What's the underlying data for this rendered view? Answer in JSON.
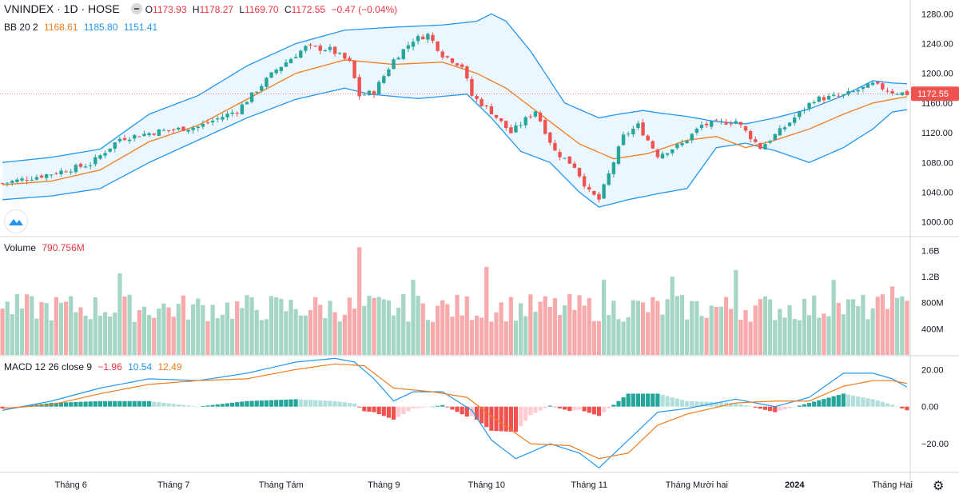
{
  "header": {
    "symbol": "VNINDEX · 1D · HOSE",
    "open_label": "O",
    "open": "1173.93",
    "high_label": "H",
    "high": "1178.27",
    "low_label": "L",
    "low": "1169.70",
    "close_label": "C",
    "close": "1172.55",
    "change": "−0.47 (−0.04%)"
  },
  "bb_legend": {
    "name": "BB 20 2",
    "basis": "1168.61",
    "upper": "1185.80",
    "lower": "1151.41"
  },
  "volume_legend": {
    "name": "Volume",
    "value": "790.756M"
  },
  "macd_legend": {
    "name": "MACD 12 26 close 9",
    "hist": "−1.96",
    "macd": "10.54",
    "signal": "12.49"
  },
  "price_badge": "1172.55",
  "colors": {
    "up": "#26a69a",
    "down": "#ef5350",
    "bb_upper": "#2196f3",
    "bb_lower": "#2196f3",
    "bb_basis": "#f07c1d",
    "bb_fill": "#e3f2fd",
    "macd_line": "#2196f3",
    "signal_line": "#f07c1d"
  },
  "icons": {
    "settings": "gear-icon",
    "logo": "tradingview-logo-icon",
    "collapse": "minus-icon"
  },
  "chart_data": [
    {
      "type": "candlestick",
      "title": "VNINDEX · 1D · HOSE",
      "ylim": [
        990,
        1290
      ],
      "y_ticks": [
        "1280.00",
        "1240.00",
        "1200.00",
        "1160.00",
        "1120.00",
        "1080.00",
        "1040.00",
        "1000.00"
      ],
      "x_ticks": [
        "Tháng 6",
        "Tháng 7",
        "Tháng Tám",
        "Tháng 9",
        "Tháng 10",
        "Tháng 11",
        "Tháng Mười hai",
        "2024",
        "Tháng Hai"
      ],
      "x_tick_index": [
        14,
        35,
        57,
        78,
        99,
        120,
        142,
        162,
        182
      ],
      "num_bars": 186,
      "close_anchors": [
        [
          0,
          1052
        ],
        [
          10,
          1065
        ],
        [
          18,
          1078
        ],
        [
          24,
          1112
        ],
        [
          32,
          1122
        ],
        [
          40,
          1128
        ],
        [
          48,
          1150
        ],
        [
          56,
          1205
        ],
        [
          62,
          1235
        ],
        [
          67,
          1232
        ],
        [
          71,
          1215
        ],
        [
          73,
          1170
        ],
        [
          76,
          1175
        ],
        [
          80,
          1218
        ],
        [
          84,
          1245
        ],
        [
          87,
          1252
        ],
        [
          90,
          1225
        ],
        [
          94,
          1210
        ],
        [
          96,
          1170
        ],
        [
          100,
          1148
        ],
        [
          104,
          1120
        ],
        [
          109,
          1150
        ],
        [
          113,
          1095
        ],
        [
          117,
          1075
        ],
        [
          120,
          1040
        ],
        [
          122,
          1030
        ],
        [
          127,
          1115
        ],
        [
          130,
          1130
        ],
        [
          134,
          1090
        ],
        [
          139,
          1105
        ],
        [
          143,
          1130
        ],
        [
          150,
          1136
        ],
        [
          155,
          1100
        ],
        [
          160,
          1128
        ],
        [
          166,
          1165
        ],
        [
          172,
          1170
        ],
        [
          178,
          1185
        ],
        [
          182,
          1175
        ],
        [
          185,
          1172.55
        ]
      ],
      "bb_upper_anchors": [
        [
          0,
          1080
        ],
        [
          10,
          1087
        ],
        [
          20,
          1098
        ],
        [
          30,
          1145
        ],
        [
          40,
          1170
        ],
        [
          50,
          1210
        ],
        [
          60,
          1240
        ],
        [
          70,
          1258
        ],
        [
          80,
          1262
        ],
        [
          90,
          1265
        ],
        [
          97,
          1270
        ],
        [
          100,
          1280
        ],
        [
          103,
          1270
        ],
        [
          108,
          1230
        ],
        [
          115,
          1160
        ],
        [
          122,
          1140
        ],
        [
          126,
          1145
        ],
        [
          131,
          1150
        ],
        [
          135,
          1146
        ],
        [
          140,
          1142
        ],
        [
          146,
          1135
        ],
        [
          152,
          1132
        ],
        [
          158,
          1140
        ],
        [
          165,
          1152
        ],
        [
          172,
          1170
        ],
        [
          178,
          1190
        ],
        [
          182,
          1187
        ],
        [
          185,
          1186
        ]
      ],
      "bb_lower_anchors": [
        [
          0,
          1030
        ],
        [
          10,
          1035
        ],
        [
          20,
          1045
        ],
        [
          30,
          1080
        ],
        [
          40,
          1110
        ],
        [
          50,
          1140
        ],
        [
          60,
          1165
        ],
        [
          70,
          1180
        ],
        [
          75,
          1172
        ],
        [
          85,
          1166
        ],
        [
          95,
          1172
        ],
        [
          100,
          1140
        ],
        [
          106,
          1095
        ],
        [
          112,
          1080
        ],
        [
          118,
          1040
        ],
        [
          122,
          1020
        ],
        [
          128,
          1030
        ],
        [
          134,
          1038
        ],
        [
          140,
          1045
        ],
        [
          146,
          1100
        ],
        [
          152,
          1106
        ],
        [
          158,
          1096
        ],
        [
          165,
          1080
        ],
        [
          172,
          1100
        ],
        [
          178,
          1125
        ],
        [
          182,
          1148
        ],
        [
          185,
          1151
        ]
      ],
      "bb_basis_anchors": [
        [
          0,
          1050
        ],
        [
          10,
          1055
        ],
        [
          20,
          1070
        ],
        [
          30,
          1108
        ],
        [
          40,
          1130
        ],
        [
          50,
          1165
        ],
        [
          60,
          1200
        ],
        [
          70,
          1218
        ],
        [
          80,
          1212
        ],
        [
          90,
          1215
        ],
        [
          97,
          1200
        ],
        [
          103,
          1180
        ],
        [
          110,
          1145
        ],
        [
          118,
          1105
        ],
        [
          125,
          1085
        ],
        [
          132,
          1092
        ],
        [
          140,
          1110
        ],
        [
          146,
          1115
        ],
        [
          152,
          1100
        ],
        [
          158,
          1110
        ],
        [
          165,
          1125
        ],
        [
          172,
          1145
        ],
        [
          178,
          1160
        ],
        [
          182,
          1165
        ],
        [
          185,
          1168.61
        ]
      ]
    },
    {
      "type": "bar",
      "title": "Volume",
      "ylim": [
        0,
        1.8
      ],
      "y_ticks": [
        "1.6B",
        "1.2B",
        "800M",
        "400M"
      ],
      "peaks": [
        [
          24,
          1.25
        ],
        [
          73,
          1.65
        ],
        [
          84,
          1.15
        ],
        [
          99,
          1.35
        ],
        [
          123,
          1.15
        ],
        [
          137,
          1.2
        ],
        [
          150,
          1.3
        ],
        [
          170,
          1.15
        ],
        [
          182,
          1.05
        ]
      ],
      "base_volume": 0.72
    },
    {
      "type": "bar+line",
      "title": "MACD 12 26 close 9",
      "ylim": [
        -35,
        27
      ],
      "y_ticks": [
        "20.00",
        "0.00",
        "−20.00"
      ],
      "macd_anchors": [
        [
          0,
          -2
        ],
        [
          10,
          3
        ],
        [
          20,
          10
        ],
        [
          30,
          15
        ],
        [
          40,
          14
        ],
        [
          50,
          18
        ],
        [
          60,
          24
        ],
        [
          68,
          26
        ],
        [
          72,
          24
        ],
        [
          76,
          15
        ],
        [
          80,
          3
        ],
        [
          84,
          8
        ],
        [
          90,
          8
        ],
        [
          96,
          -2
        ],
        [
          100,
          -18
        ],
        [
          105,
          -28
        ],
        [
          112,
          -20
        ],
        [
          118,
          -25
        ],
        [
          122,
          -33
        ],
        [
          128,
          -18
        ],
        [
          134,
          -3
        ],
        [
          140,
          -1
        ],
        [
          150,
          4
        ],
        [
          158,
          0
        ],
        [
          165,
          5
        ],
        [
          172,
          18
        ],
        [
          178,
          18
        ],
        [
          182,
          15
        ],
        [
          185,
          10.54
        ]
      ],
      "signal_anchors": [
        [
          0,
          -1
        ],
        [
          10,
          1
        ],
        [
          20,
          7
        ],
        [
          30,
          12
        ],
        [
          40,
          14
        ],
        [
          50,
          15
        ],
        [
          60,
          20
        ],
        [
          68,
          23
        ],
        [
          74,
          22
        ],
        [
          80,
          10
        ],
        [
          88,
          8
        ],
        [
          95,
          5
        ],
        [
          100,
          -5
        ],
        [
          108,
          -20
        ],
        [
          116,
          -21
        ],
        [
          122,
          -28
        ],
        [
          128,
          -25
        ],
        [
          134,
          -10
        ],
        [
          140,
          -4
        ],
        [
          150,
          2
        ],
        [
          158,
          3
        ],
        [
          165,
          3
        ],
        [
          172,
          11
        ],
        [
          178,
          14
        ],
        [
          182,
          14
        ],
        [
          185,
          12.49
        ]
      ]
    }
  ]
}
